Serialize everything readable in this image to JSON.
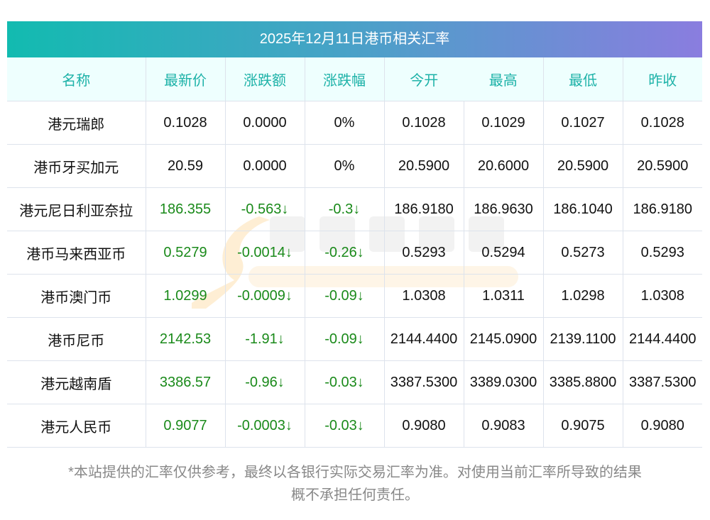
{
  "title": "2025年12月11日港币相关汇率",
  "headers": [
    "名称",
    "最新价",
    "涨跌额",
    "涨跌幅",
    "今开",
    "最高",
    "最低",
    "昨收"
  ],
  "rows": [
    {
      "cells": [
        "港元瑞郎",
        "0.1028",
        "0.0000",
        "0%",
        "0.1028",
        "0.1029",
        "0.1027",
        "0.1028"
      ],
      "down": false
    },
    {
      "cells": [
        "港币牙买加元",
        "20.59",
        "0.0000",
        "0%",
        "20.5900",
        "20.6000",
        "20.5900",
        "20.5900"
      ],
      "down": false
    },
    {
      "cells": [
        "港元尼日利亚奈拉",
        "186.355",
        "-0.563↓",
        "-0.3↓",
        "186.9180",
        "186.9630",
        "186.1040",
        "186.9180"
      ],
      "down": true
    },
    {
      "cells": [
        "港币马来西亚币",
        "0.5279",
        "-0.0014↓",
        "-0.26↓",
        "0.5293",
        "0.5294",
        "0.5273",
        "0.5293"
      ],
      "down": true
    },
    {
      "cells": [
        "港币澳门币",
        "1.0299",
        "-0.0009↓",
        "-0.09↓",
        "1.0308",
        "1.0311",
        "1.0298",
        "1.0308"
      ],
      "down": true
    },
    {
      "cells": [
        "港币尼币",
        "2142.53",
        "-1.91↓",
        "-0.09↓",
        "2144.4400",
        "2145.0900",
        "2139.1100",
        "2144.4400"
      ],
      "down": true
    },
    {
      "cells": [
        "港元越南盾",
        "3386.57",
        "-0.96↓",
        "-0.03↓",
        "3387.5300",
        "3389.0300",
        "3385.8800",
        "3387.5300"
      ],
      "down": true
    },
    {
      "cells": [
        "港元人民币",
        "0.9077",
        "-0.0003↓",
        "-0.03↓",
        "0.9080",
        "0.9083",
        "0.9075",
        "0.9080"
      ],
      "down": true
    }
  ],
  "watermark": {
    "cn": "南方财富网",
    "en": "southmoney.com"
  },
  "footer_line1": "*本站提供的汇率仅供参考，最终以各银行实际交易汇率为准。对使用当前汇率所导致的结果",
  "footer_line2": "概不承担任何责任。",
  "colors": {
    "down": "#1a8a1a",
    "header_text": "#1db2a8",
    "header_bg": "#eefffe"
  }
}
